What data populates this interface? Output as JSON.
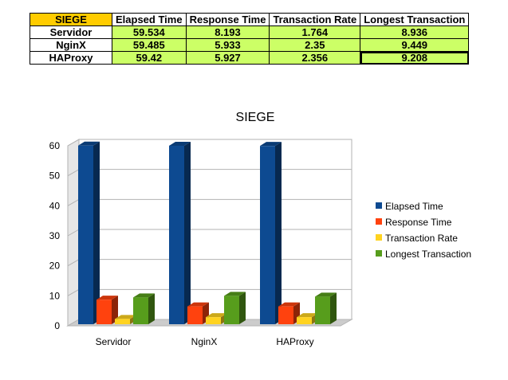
{
  "table": {
    "corner_label": "SIEGE",
    "columns": [
      "Elapsed Time",
      "Response Time",
      "Transaction Rate",
      "Longest Transaction"
    ],
    "rows": [
      {
        "label": "Servidor",
        "values": [
          "59.534",
          "8.193",
          "1.764",
          "8.936"
        ]
      },
      {
        "label": "NginX",
        "values": [
          "59.485",
          "5.933",
          "2.35",
          "9.449"
        ]
      },
      {
        "label": "HAProxy",
        "values": [
          "59.42",
          "5.927",
          "2.356",
          "9.208"
        ]
      }
    ],
    "colors": {
      "corner": "#ffcc00",
      "cell": "#ccff66"
    }
  },
  "chart_data": {
    "type": "bar",
    "title": "SIEGE",
    "xlabel": "",
    "ylabel": "",
    "categories": [
      "Servidor",
      "NginX",
      "HAProxy"
    ],
    "series": [
      {
        "name": "Elapsed Time",
        "values": [
          59.534,
          59.485,
          59.42
        ],
        "color": "#0d4a91"
      },
      {
        "name": "Response Time",
        "values": [
          8.193,
          5.933,
          5.927
        ],
        "color": "#ff420e"
      },
      {
        "name": "Transaction Rate",
        "values": [
          1.764,
          2.35,
          2.356
        ],
        "color": "#ffd320"
      },
      {
        "name": "Longest Transaction",
        "values": [
          8.936,
          9.449,
          9.208
        ],
        "color": "#579d1c"
      }
    ],
    "ylim": [
      0,
      60
    ],
    "yticks": [
      0,
      10,
      20,
      30,
      40,
      50,
      60
    ],
    "grid": true,
    "legend": "right",
    "style": "3d"
  }
}
